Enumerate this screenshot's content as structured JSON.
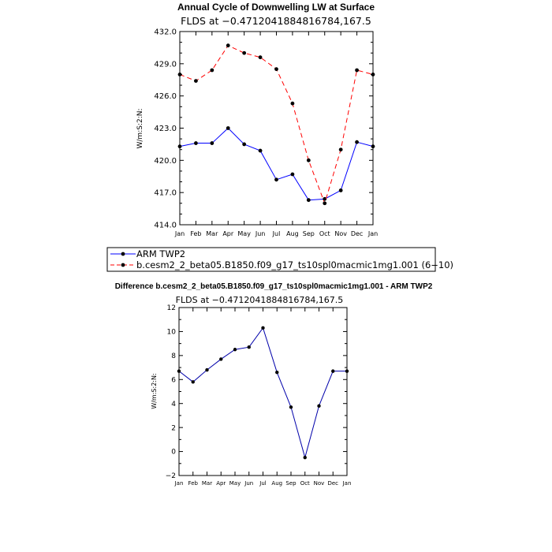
{
  "chart_data": [
    {
      "type": "line",
      "title": "Annual Cycle of Downwelling LW at Surface",
      "subtitle": "FLDS at −0.4712041884816784,167.5",
      "ylabel": "W/m:S:2:N:",
      "ylim": [
        414.0,
        432.0
      ],
      "yticks": [
        "414.0",
        "417.0",
        "420.0",
        "423.0",
        "426.0",
        "429.0",
        "432.0"
      ],
      "yticks_values": [
        414,
        417,
        420,
        423,
        426,
        429,
        432
      ],
      "categories": [
        "Jan",
        "Feb",
        "Mar",
        "Apr",
        "May",
        "Jun",
        "Jul",
        "Aug",
        "Sep",
        "Oct",
        "Nov",
        "Dec",
        "Jan"
      ],
      "series": [
        {
          "name": "ARM TWP2",
          "color": "#0000ff",
          "dash": "solid",
          "values": [
            421.3,
            421.6,
            421.6,
            423.0,
            421.5,
            420.9,
            418.2,
            418.7,
            416.3,
            416.4,
            417.2,
            421.7,
            421.3
          ]
        },
        {
          "name": "b.cesm2_2_beta05.B1850.f09_g17_ts10spl0macmic1mg1.001 (6−10)",
          "color": "#ff0000",
          "dash": "dashed",
          "values": [
            428.0,
            427.4,
            428.4,
            430.7,
            430.0,
            429.6,
            428.5,
            425.3,
            420.0,
            416.0,
            421.0,
            428.4,
            428.0
          ]
        }
      ]
    },
    {
      "type": "line",
      "title": "Difference b.cesm2_2_beta05.B1850.f09_g17_ts10spl0macmic1mg1.001 - ARM TWP2",
      "subtitle": "FLDS at −0.4712041884816784,167.5",
      "ylabel": "W/m:S:2:N:",
      "ylim": [
        -2,
        12
      ],
      "yticks": [
        "−2",
        "0",
        "2",
        "4",
        "6",
        "8",
        "10",
        "12"
      ],
      "yticks_values": [
        -2,
        0,
        2,
        4,
        6,
        8,
        10,
        12
      ],
      "categories": [
        "Jan",
        "Feb",
        "Mar",
        "Apr",
        "May",
        "Jun",
        "Jul",
        "Aug",
        "Sep",
        "Oct",
        "Nov",
        "Dec",
        "Jan"
      ],
      "series": [
        {
          "name": "Difference",
          "color": "#0000aa",
          "dash": "solid",
          "values": [
            6.7,
            5.8,
            6.8,
            7.7,
            8.5,
            8.7,
            10.3,
            6.6,
            3.7,
            -0.5,
            3.8,
            6.7,
            6.7
          ]
        }
      ]
    }
  ]
}
